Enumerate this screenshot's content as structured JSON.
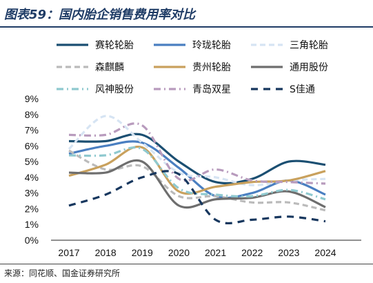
{
  "header": {
    "title": "图表59：国内胎企销售费用率对比"
  },
  "footer": {
    "source": "来源：同花顺、国金证券研究所"
  },
  "chart_data": {
    "type": "line",
    "x": [
      "2017",
      "2018",
      "2019",
      "2020",
      "2021",
      "2022",
      "2023",
      "2024"
    ],
    "ylim": [
      0,
      9
    ],
    "yticks": [
      "0%",
      "1%",
      "2%",
      "3%",
      "4%",
      "5%",
      "6%",
      "7%",
      "8%",
      "9%"
    ],
    "grid": false,
    "legend_position": "top",
    "series": [
      {
        "name": "赛轮轮胎",
        "color": "#1b4f72",
        "dash": "solid",
        "values": [
          6.3,
          6.3,
          6.7,
          5.0,
          3.7,
          3.9,
          5.0,
          4.8
        ]
      },
      {
        "name": "玲珑轮胎",
        "color": "#4a7fc1",
        "dash": "solid",
        "values": [
          5.5,
          6.0,
          6.2,
          4.6,
          2.8,
          3.0,
          3.8,
          2.9
        ]
      },
      {
        "name": "三角轮胎",
        "color": "#d6e4f3",
        "dash": "dash",
        "values": [
          5.8,
          7.9,
          6.2,
          4.3,
          4.0,
          3.5,
          3.8,
          3.9
        ]
      },
      {
        "name": "森麒麟",
        "color": "#bbbbbb",
        "dash": "dash",
        "values": [
          5.7,
          4.5,
          4.7,
          2.8,
          2.8,
          2.4,
          2.4,
          1.9
        ]
      },
      {
        "name": "贵州轮胎",
        "color": "#c9a15d",
        "dash": "solid",
        "values": [
          4.1,
          4.8,
          5.9,
          3.1,
          3.4,
          3.7,
          3.8,
          4.4
        ]
      },
      {
        "name": "通用股份",
        "color": "#6e6e6e",
        "dash": "solid",
        "values": [
          4.3,
          4.3,
          5.0,
          2.2,
          2.6,
          2.7,
          3.1,
          2.1
        ]
      },
      {
        "name": "风神股份",
        "color": "#8fc9cf",
        "dash": "dashdot",
        "values": [
          5.4,
          5.4,
          5.8,
          3.3,
          2.9,
          2.8,
          3.2,
          2.6
        ]
      },
      {
        "name": "青岛双星",
        "color": "#b89bbd",
        "dash": "dashdot",
        "values": [
          6.7,
          6.7,
          7.3,
          3.9,
          4.5,
          3.8,
          3.7,
          3.6
        ]
      },
      {
        "name": "S佳通",
        "color": "#17375e",
        "dash": "bigdash",
        "values": [
          2.2,
          2.9,
          4.0,
          4.2,
          1.3,
          1.3,
          1.5,
          1.2
        ]
      }
    ]
  }
}
